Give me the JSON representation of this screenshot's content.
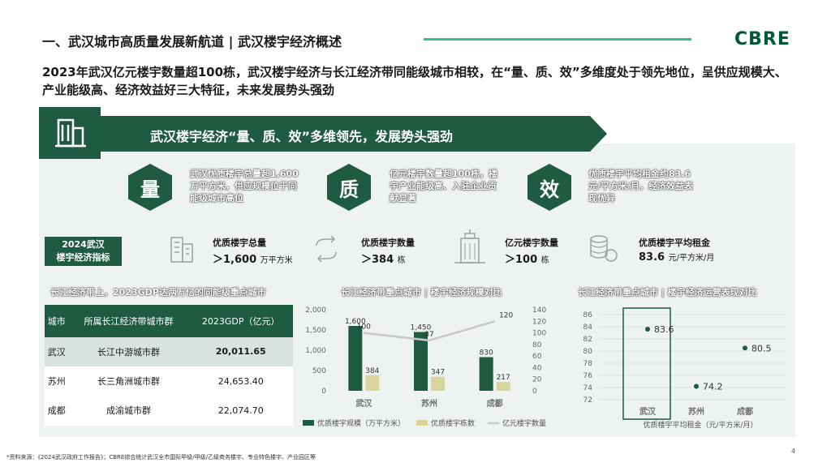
{
  "header": {
    "title": "一、武汉城市高质量发展新航道 | 武汉楼宇经济概述",
    "logo": "CBRE",
    "subtitle": "2023年武汉亿元楼宇数量超100栋，武汉楼宇经济与长江经济带同能级城市相较，在“量、质、效”多维度处于领先地位，呈供应规模大、产业能级高、经济效益好三大特征，未来发展势头强劲"
  },
  "banner": {
    "text": "武汉楼宇经济“量、质、效”多维领先，发展势头强劲",
    "icon": "building-icon"
  },
  "pillars": [
    {
      "char": "量",
      "desc": "武汉优质楼宇总量超1,600万平方米，供应规模位于同能级城市高位"
    },
    {
      "char": "质",
      "desc": "亿元楼宇数量超100栋，楼宇产业能级高、入驻企业贡献显著"
    },
    {
      "char": "效",
      "desc": "优质楼宇平均租金约83.6 元/平方米/月，经济效益表现优异"
    }
  ],
  "indicators": {
    "label": "2024武汉\n楼宇经济指标",
    "label_line1": "2024武汉",
    "label_line2": "楼宇经济指标",
    "items": [
      {
        "title": "优质楼宇总量",
        "value": "＞1,600",
        "unit": "万平方米",
        "icon": "buildings-icon"
      },
      {
        "title": "优质楼宇数量",
        "value": "＞384",
        "unit": "栋",
        "icon": "refresh-arrows-icon"
      },
      {
        "title": "亿元楼宇数量",
        "value": "＞100",
        "unit": "栋",
        "icon": "skyscraper-icon"
      },
      {
        "title": "优质楼宇平均租金",
        "value": "83.6",
        "unit": "元/平方米/月",
        "icon": "coins-icon"
      }
    ]
  },
  "table_section": {
    "title": "长江经济带上，2023GDP达两万亿的同能级重点城市",
    "headers": [
      "城市",
      "所属长江经济带城市群",
      "2023GDP（亿元）"
    ],
    "rows": [
      [
        "武汉",
        "长江中游城市群",
        "20,011.65"
      ],
      [
        "苏州",
        "长三角洲城市群",
        "24,653.40"
      ],
      [
        "成都",
        "成渝城市群",
        "22,074.70"
      ]
    ]
  },
  "chart_data": [
    {
      "type": "bar",
      "title": "长江经济带重点城市 | 楼宇经济规模对比",
      "categories": [
        "武汉",
        "苏州",
        "成都"
      ],
      "series": [
        {
          "name": "优质楼宇规模（万平方米）",
          "values": [
            1600,
            1450,
            830
          ],
          "axis": "left",
          "color": "#1f5a43"
        },
        {
          "name": "优质楼宇栋数",
          "values": [
            384,
            347,
            217
          ],
          "axis": "left",
          "color": "#d8d49a"
        },
        {
          "name": "亿元楼宇数量",
          "values": [
            100,
            87,
            120
          ],
          "axis": "right",
          "type": "line",
          "color": "#c8c8c8"
        }
      ],
      "ylim": [
        0,
        2000
      ],
      "yticks": [
        "0",
        "500",
        "1,000",
        "1,500",
        "2,000"
      ],
      "y2lim": [
        0,
        140
      ],
      "y2ticks": [
        "0",
        "20",
        "40",
        "60",
        "80",
        "100",
        "120",
        "140"
      ],
      "labels": {
        "s0": [
          "1,600",
          "1,450",
          "830"
        ],
        "s1": [
          "384",
          "347",
          "217"
        ],
        "s2": [
          "100",
          "87",
          "120"
        ]
      },
      "legend_position": "bottom"
    },
    {
      "type": "scatter",
      "title": "长江经济带重点城市 | 楼宇经济运营表现对比",
      "categories": [
        "武汉",
        "苏州",
        "成都"
      ],
      "values": [
        83.6,
        74.2,
        80.5
      ],
      "labels": [
        "83.6",
        "74.2",
        "80.5"
      ],
      "xlabel": "优质楼宇平均租金（元/平方米/月）",
      "ylim": [
        72,
        86
      ],
      "yticks": [
        "72",
        "74",
        "76",
        "78",
        "80",
        "82",
        "84",
        "86"
      ],
      "grid": true,
      "highlight": "武汉",
      "color": "#1f5a43"
    }
  ],
  "footnote": "*资料来源：《2024武汉政府工作报告》；CBRE综合统计武汉全市国际甲级/甲级/乙级商务楼宇、专业特色楼宇、产业园区等",
  "page_number": "4"
}
